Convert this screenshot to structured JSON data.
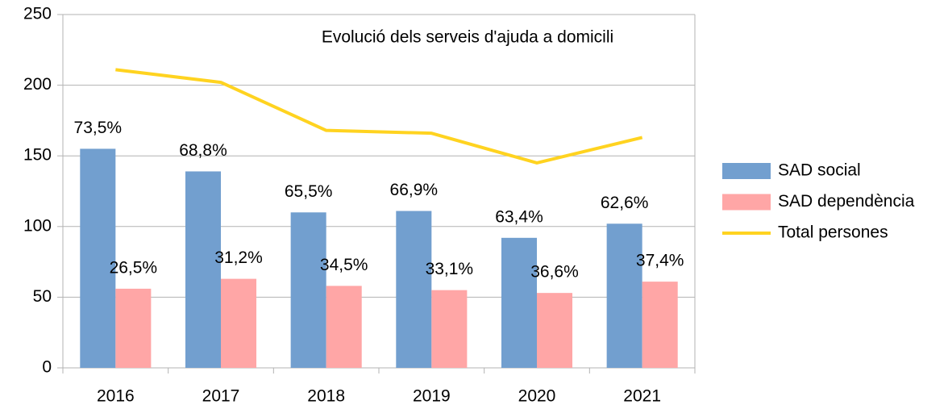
{
  "chart_data": {
    "type": "bar-line",
    "title": "Evolució dels serveis d'ajuda a domicili",
    "categories": [
      "2016",
      "2017",
      "2018",
      "2019",
      "2020",
      "2021"
    ],
    "series": [
      {
        "name": "SAD social",
        "type": "bar",
        "color": "#729fcf",
        "values": [
          155,
          139,
          110,
          111,
          92,
          102
        ],
        "labels": [
          "73,5%",
          "68,8%",
          "65,5%",
          "66,9%",
          "63,4%",
          "62,6%"
        ]
      },
      {
        "name": "SAD dependència",
        "type": "bar",
        "color": "#ffa6a6",
        "values": [
          56,
          63,
          58,
          55,
          53,
          61
        ],
        "labels": [
          "26,5%",
          "31,2%",
          "34,5%",
          "33,1%",
          "36,6%",
          "37,4%"
        ]
      },
      {
        "name": "Total persones",
        "type": "line",
        "color": "#ffd320",
        "values": [
          211,
          202,
          168,
          166,
          145,
          163
        ]
      }
    ],
    "ylim": [
      0,
      250
    ],
    "yticks": [
      0,
      50,
      100,
      150,
      200,
      250
    ],
    "grid": true,
    "legend": "right"
  }
}
